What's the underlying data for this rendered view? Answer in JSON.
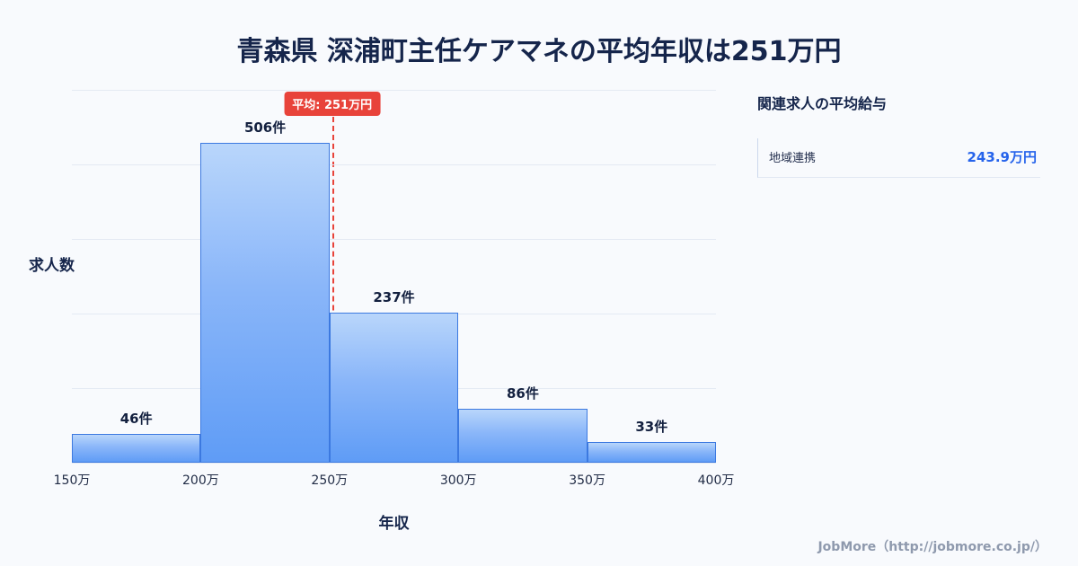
{
  "page": {
    "title": "青森県 深浦町主任ケアマネの平均年収は251万円",
    "footer_credit": "JobMore（http://jobmore.co.jp/）"
  },
  "chart_data": {
    "type": "bar",
    "title": "青森県 深浦町主任ケアマネの平均年収は251万円",
    "categories": [
      "150万-200万",
      "200万-250万",
      "250万-300万",
      "300万-350万",
      "350万-400万"
    ],
    "values": [
      46,
      506,
      237,
      86,
      33
    ],
    "value_labels": [
      "46件",
      "506件",
      "237件",
      "86件",
      "33件"
    ],
    "x_ticks": [
      "150万",
      "200万",
      "250万",
      "300万",
      "350万",
      "400万"
    ],
    "x_range": [
      150,
      400
    ],
    "xlabel": "年収",
    "ylabel": "求人数",
    "ylim": [
      0,
      590
    ],
    "grid": true,
    "legend": false,
    "average_marker": {
      "value": 251,
      "label": "平均: 251万円"
    }
  },
  "side_panel": {
    "heading": "関連求人の平均給与",
    "rows": [
      {
        "label": "地域連携",
        "value": "243.9万円"
      }
    ]
  },
  "colors": {
    "background": "#f8fafd",
    "title_navy": "#15254b",
    "bar_fill_top": "#b9d6fb",
    "bar_fill_bottom": "#5f9cf6",
    "bar_border": "#3c79e0",
    "gridline": "#e4eaf3",
    "marker_red": "#e8433a",
    "value_blue": "#2563eb",
    "footer_gray": "#8e99ad"
  }
}
